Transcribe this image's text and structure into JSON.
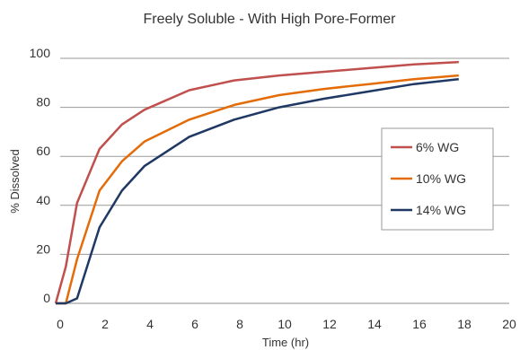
{
  "chart_data": {
    "type": "line",
    "title": "Freely Soluble - With High Pore-Former",
    "xlabel": "Time (hr)",
    "ylabel": "% Dissolved",
    "xlim": [
      0,
      20
    ],
    "ylim": [
      0,
      100
    ],
    "x_ticks": [
      "0",
      "2",
      "4",
      "6",
      "8",
      "10",
      "12",
      "14",
      "16",
      "18",
      "20"
    ],
    "y_ticks": [
      "0",
      "20",
      "40",
      "60",
      "80",
      "100"
    ],
    "grid": "horizontal",
    "legend_position": "right",
    "series": [
      {
        "name": "6% WG",
        "color": "#c0504d",
        "x": [
          -0.2,
          0.25,
          0.75,
          1.75,
          2.75,
          3.75,
          5.75,
          7.75,
          9.75,
          11.75,
          13.75,
          15.75,
          17.75
        ],
        "y": [
          0,
          15,
          41,
          63,
          73,
          79,
          87,
          91,
          93,
          94.5,
          96,
          97.5,
          98.5
        ]
      },
      {
        "name": "10% WG",
        "color": "#e36c09",
        "x": [
          -0.2,
          0.25,
          0.75,
          1.75,
          2.75,
          3.75,
          5.75,
          7.75,
          9.75,
          11.75,
          13.75,
          15.75,
          17.75
        ],
        "y": [
          0,
          0,
          18,
          46,
          58,
          66,
          75,
          81,
          85,
          87.5,
          89.5,
          91.5,
          93
        ]
      },
      {
        "name": "14% WG",
        "color": "#1f3864",
        "x": [
          -0.2,
          0.25,
          0.75,
          1.75,
          2.75,
          3.75,
          5.75,
          7.75,
          9.75,
          11.75,
          13.75,
          15.75,
          17.75
        ],
        "y": [
          0,
          0,
          2,
          31,
          46,
          56,
          68,
          75,
          80,
          83.5,
          86.5,
          89.5,
          91.5
        ]
      }
    ]
  }
}
